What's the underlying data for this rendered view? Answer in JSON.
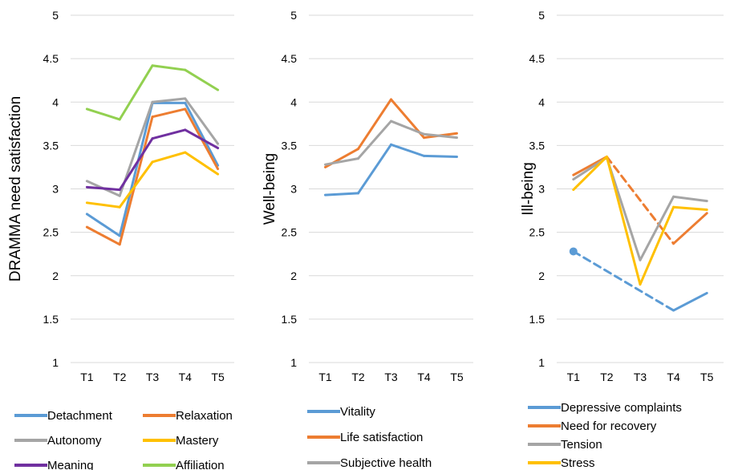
{
  "chart_data": [
    {
      "type": "line",
      "x": [
        "T1",
        "T2",
        "T3",
        "T4",
        "T5"
      ],
      "ylabel": "DRAMMA need satisfaction",
      "ylim": [
        1,
        5
      ],
      "yticks": [
        "1",
        "1.5",
        "2",
        "2.5",
        "3",
        "3.5",
        "4",
        "4.5",
        "5"
      ],
      "grid": "horizontal",
      "legend_position": "bottom",
      "series": [
        {
          "name": "Detachment",
          "color": "#5b9bd5",
          "values": [
            2.71,
            2.46,
            3.99,
            3.99,
            3.27
          ]
        },
        {
          "name": "Relaxation",
          "color": "#ed7d31",
          "values": [
            2.56,
            2.36,
            3.83,
            3.92,
            3.23
          ]
        },
        {
          "name": "Autonomy",
          "color": "#a5a5a5",
          "values": [
            3.09,
            2.92,
            4.0,
            4.04,
            3.52
          ]
        },
        {
          "name": "Mastery",
          "color": "#ffc000",
          "values": [
            2.84,
            2.79,
            3.31,
            3.42,
            3.17
          ]
        },
        {
          "name": "Meaning",
          "color": "#7030a0",
          "values": [
            3.02,
            2.99,
            3.58,
            3.68,
            3.47
          ]
        },
        {
          "name": "Affiliation",
          "color": "#92d050",
          "values": [
            3.92,
            3.8,
            4.42,
            4.37,
            4.14
          ]
        }
      ]
    },
    {
      "type": "line",
      "x": [
        "T1",
        "T2",
        "T3",
        "T4",
        "T5"
      ],
      "ylabel": "Well-being",
      "ylim": [
        1,
        5
      ],
      "yticks": [
        "1",
        "1.5",
        "2",
        "2.5",
        "3",
        "3.5",
        "4",
        "4.5",
        "5"
      ],
      "grid": "horizontal",
      "legend_position": "bottom",
      "series": [
        {
          "name": "Vitality",
          "color": "#5b9bd5",
          "values": [
            2.93,
            2.95,
            3.51,
            3.38,
            3.37
          ]
        },
        {
          "name": "Life satisfaction",
          "color": "#ed7d31",
          "values": [
            3.25,
            3.46,
            4.03,
            3.59,
            3.64
          ]
        },
        {
          "name": "Subjective health",
          "color": "#a5a5a5",
          "values": [
            3.28,
            3.35,
            3.78,
            3.63,
            3.59
          ]
        }
      ]
    },
    {
      "type": "line",
      "x": [
        "T1",
        "T2",
        "T3",
        "T4",
        "T5"
      ],
      "ylabel": "Ill-being",
      "ylim": [
        1,
        5
      ],
      "yticks": [
        "1",
        "1.5",
        "2",
        "2.5",
        "3",
        "3.5",
        "4",
        "4.5",
        "5"
      ],
      "grid": "horizontal",
      "legend_position": "bottom",
      "series": [
        {
          "name": "Depressive complaints",
          "color": "#5b9bd5",
          "values": [
            2.28,
            null,
            null,
            1.6,
            1.8
          ],
          "dashed_segments": [
            [
              0,
              3
            ]
          ],
          "marker_first": true
        },
        {
          "name": "Need for recovery",
          "color": "#ed7d31",
          "values": [
            3.16,
            3.37,
            null,
            2.37,
            2.72
          ],
          "dashed_segments": [
            [
              1,
              3
            ]
          ]
        },
        {
          "name": "Tension",
          "color": "#a5a5a5",
          "values": [
            3.11,
            3.36,
            2.18,
            2.91,
            2.86
          ]
        },
        {
          "name": "Stress",
          "color": "#ffc000",
          "values": [
            2.99,
            3.37,
            1.9,
            2.79,
            2.76
          ]
        }
      ]
    }
  ]
}
